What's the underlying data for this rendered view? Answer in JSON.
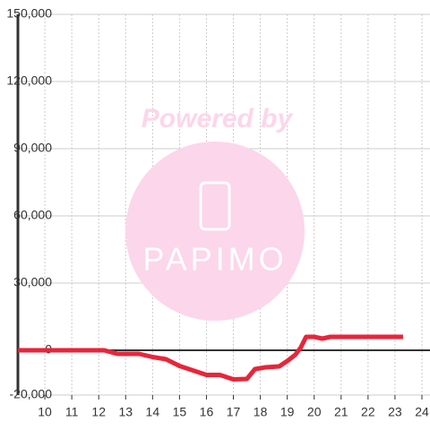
{
  "chart_data": {
    "type": "line",
    "watermark": {
      "title": "Powered by",
      "brand": "PAPIMO"
    },
    "x": [
      9,
      12.2,
      12.7,
      13.5,
      14,
      14.5,
      15,
      15.5,
      16,
      16.5,
      17,
      17.5,
      17.8,
      18.2,
      18.7,
      19,
      19.3,
      19.5,
      19.7,
      20,
      20.3,
      20.6,
      23.3
    ],
    "series": [
      {
        "color": "#e8253a",
        "values": [
          0,
          0,
          -1600,
          -1600,
          -3000,
          -4000,
          -7000,
          -9000,
          -11000,
          -11000,
          -13000,
          -12800,
          -8400,
          -7600,
          -7200,
          -4800,
          -2000,
          1200,
          6000,
          6000,
          5200,
          6000,
          6000
        ]
      }
    ],
    "xlim": [
      9,
      24.3
    ],
    "xticks": [
      10,
      11,
      12,
      13,
      14,
      15,
      16,
      17,
      18,
      19,
      20,
      21,
      22,
      23,
      24
    ],
    "ylim": [
      -20000,
      150000
    ],
    "yticks": [
      {
        "value": -20000,
        "label": "-20,000"
      },
      0,
      {
        "value": 30000,
        "label": "30,000"
      },
      {
        "value": 60000,
        "label": "60,000"
      },
      {
        "value": 90000,
        "label": "90,000"
      },
      {
        "value": 120000,
        "label": "120,000"
      },
      {
        "value": 150000,
        "label": "150,000"
      }
    ],
    "grid": true
  }
}
